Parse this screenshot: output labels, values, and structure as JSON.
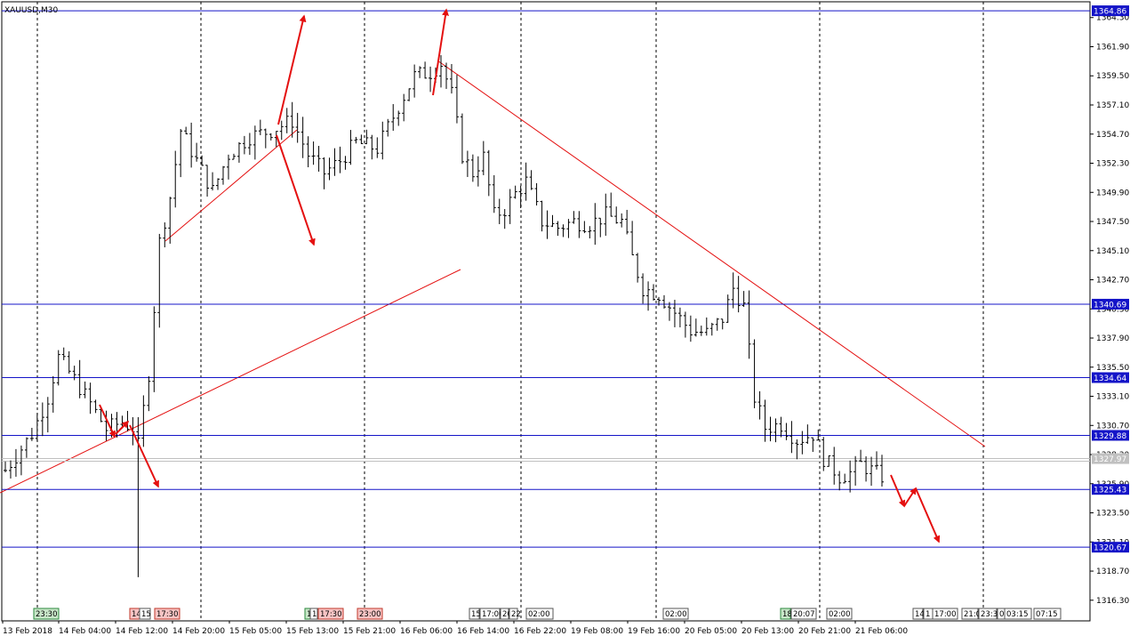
{
  "chart_data": {
    "type": "candlestick",
    "symbol_label": "XAUUSD,M30",
    "y_axis_ticks": [
      "1316.30",
      "1318.70",
      "1321.10",
      "1323.50",
      "1325.90",
      "1328.30",
      "1330.70",
      "1333.10",
      "1335.50",
      "1337.90",
      "1340.30",
      "1342.70",
      "1345.10",
      "1347.50",
      "1349.90",
      "1352.30",
      "1354.70",
      "1357.10",
      "1359.50",
      "1361.90",
      "1364.30"
    ],
    "ylim": [
      1314.6,
      1365.6
    ],
    "x_axis_labels": [
      "13 Feb 2018",
      "14 Feb 04:00",
      "14 Feb 12:00",
      "14 Feb 20:00",
      "15 Feb 05:00",
      "15 Feb 13:00",
      "15 Feb 21:00",
      "16 Feb 06:00",
      "16 Feb 14:00",
      "16 Feb 22:00",
      "19 Feb 08:00",
      "19 Feb 16:00",
      "20 Feb 05:00",
      "20 Feb 13:00",
      "20 Feb 21:00",
      "21 Feb 06:00"
    ],
    "horizontal_levels": [
      {
        "price": 1364.86,
        "label": "1364.86"
      },
      {
        "price": 1340.69,
        "label": "1340.69"
      },
      {
        "price": 1334.64,
        "label": "1334.64"
      },
      {
        "price": 1329.88,
        "label": "1329.88"
      },
      {
        "price": 1325.43,
        "label": "1325.43"
      },
      {
        "price": 1320.67,
        "label": "1320.67"
      }
    ],
    "current_price": {
      "price": 1327.97,
      "label": "1327.97"
    },
    "event_markers": [
      {
        "text": "23:30",
        "kind": "green"
      },
      {
        "text": "14",
        "kind": "red"
      },
      {
        "text": "15",
        "kind": "neutral"
      },
      {
        "text": "17:30",
        "kind": "red"
      },
      {
        "text": "1",
        "kind": "green"
      },
      {
        "text": "1",
        "kind": "neutral"
      },
      {
        "text": "17:30",
        "kind": "red"
      },
      {
        "text": "23:00",
        "kind": "red"
      },
      {
        "text": "15",
        "kind": "neutral"
      },
      {
        "text": "17:00",
        "kind": "neutral"
      },
      {
        "text": "20",
        "kind": "neutral"
      },
      {
        "text": "22",
        "kind": "neutral"
      },
      {
        "text": "02:00",
        "kind": "neutral"
      },
      {
        "text": "02:00",
        "kind": "neutral"
      },
      {
        "text": "18",
        "kind": "green"
      },
      {
        "text": "20:07",
        "kind": "neutral"
      },
      {
        "text": "02:00",
        "kind": "neutral"
      },
      {
        "text": "14:",
        "kind": "neutral"
      },
      {
        "text": "1",
        "kind": "neutral"
      },
      {
        "text": "17:00",
        "kind": "neutral"
      },
      {
        "text": "21:0",
        "kind": "neutral"
      },
      {
        "text": "23:3",
        "kind": "neutral"
      },
      {
        "text": "0",
        "kind": "neutral"
      },
      {
        "text": "03:15",
        "kind": "neutral"
      },
      {
        "text": "07:15",
        "kind": "neutral"
      }
    ],
    "price_path": [
      [
        0,
        1327.0
      ],
      [
        5,
        1330.0
      ],
      [
        8,
        1333.0
      ],
      [
        10,
        1336.3
      ],
      [
        13,
        1334.5
      ],
      [
        16,
        1332.5
      ],
      [
        19,
        1330.4
      ],
      [
        22,
        1331.0
      ],
      [
        24,
        1330.5
      ],
      [
        25,
        1329.0
      ],
      [
        27,
        1335.0
      ],
      [
        29,
        1345.8
      ],
      [
        31,
        1349.5
      ],
      [
        33,
        1355.0
      ],
      [
        36,
        1352.5
      ],
      [
        39,
        1350.0
      ],
      [
        42,
        1353.0
      ],
      [
        46,
        1354.5
      ],
      [
        50,
        1355.0
      ],
      [
        54,
        1355.8
      ],
      [
        57,
        1353.0
      ],
      [
        60,
        1351.5
      ],
      [
        63,
        1352.5
      ],
      [
        66,
        1354.0
      ],
      [
        70,
        1353.5
      ],
      [
        74,
        1357.0
      ],
      [
        77,
        1359.5
      ],
      [
        80,
        1359.8
      ],
      [
        82,
        1360.5
      ],
      [
        84,
        1358.0
      ],
      [
        86,
        1353.0
      ],
      [
        88,
        1351.5
      ],
      [
        90,
        1352.8
      ],
      [
        92,
        1348.0
      ],
      [
        94,
        1348.5
      ],
      [
        96,
        1349.8
      ],
      [
        98,
        1350.8
      ],
      [
        101,
        1347.5
      ],
      [
        104,
        1347.0
      ],
      [
        107,
        1347.5
      ],
      [
        110,
        1347.3
      ],
      [
        113,
        1348.0
      ],
      [
        116,
        1347.5
      ],
      [
        118,
        1344.5
      ],
      [
        120,
        1342.0
      ],
      [
        123,
        1341.5
      ],
      [
        126,
        1340.0
      ],
      [
        129,
        1338.5
      ],
      [
        132,
        1338.3
      ],
      [
        135,
        1339.5
      ],
      [
        137,
        1342.0
      ],
      [
        139,
        1340.5
      ],
      [
        141,
        1333.0
      ],
      [
        143,
        1330.5
      ],
      [
        146,
        1330.8
      ],
      [
        149,
        1329.5
      ],
      [
        152,
        1330.0
      ],
      [
        154,
        1328.0
      ],
      [
        157,
        1326.5
      ],
      [
        159,
        1326.8
      ],
      [
        161,
        1327.5
      ],
      [
        163,
        1327.0
      ],
      [
        165,
        1326.5
      ]
    ]
  }
}
